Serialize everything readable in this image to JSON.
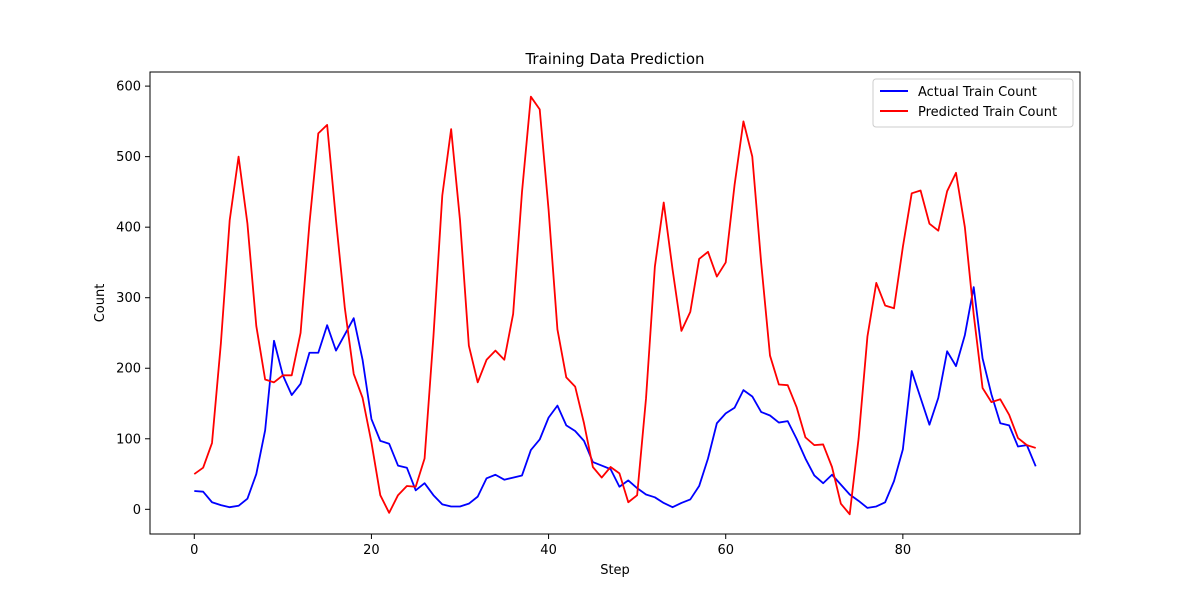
{
  "chart_data": {
    "type": "line",
    "title": "Training Data Prediction",
    "xlabel": "Step",
    "ylabel": "Count",
    "xlim": [
      -5,
      100
    ],
    "ylim": [
      -35,
      620
    ],
    "xticks": [
      0,
      20,
      40,
      60,
      80
    ],
    "yticks": [
      0,
      100,
      200,
      300,
      400,
      500,
      600
    ],
    "grid": false,
    "legend_position": "top-right",
    "series": [
      {
        "name": "Actual Train Count",
        "color": "#0000ff",
        "values": [
          26,
          25,
          10,
          6,
          3,
          5,
          15,
          50,
          112,
          239,
          190,
          162,
          178,
          222,
          222,
          261,
          225,
          248,
          271,
          212,
          128,
          97,
          93,
          62,
          59,
          27,
          37,
          20,
          7,
          4,
          4,
          8,
          18,
          44,
          49,
          42,
          45,
          48,
          84,
          99,
          130,
          147,
          119,
          111,
          97,
          67,
          62,
          57,
          32,
          41,
          30,
          21,
          17,
          9,
          3,
          9,
          14,
          33,
          72,
          122,
          136,
          144,
          169,
          160,
          138,
          133,
          123,
          125,
          100,
          72,
          48,
          37,
          49,
          35,
          21,
          12,
          2,
          4,
          10,
          40,
          85,
          196,
          158,
          120,
          158,
          224,
          203,
          247,
          315,
          214,
          163,
          122,
          119,
          89,
          91,
          61
        ]
      },
      {
        "name": "Predicted Train Count",
        "color": "#ff0000",
        "values": [
          50,
          59,
          94,
          235,
          410,
          500,
          405,
          260,
          184,
          180,
          190,
          190,
          250,
          405,
          533,
          545,
          410,
          285,
          192,
          158,
          95,
          20,
          -5,
          20,
          33,
          32,
          72,
          245,
          445,
          539,
          410,
          232,
          180,
          212,
          225,
          212,
          277,
          450,
          585,
          567,
          425,
          255,
          187,
          174,
          122,
          60,
          45,
          60,
          51,
          10,
          20,
          157,
          344,
          435,
          340,
          253,
          280,
          355,
          365,
          330,
          350,
          460,
          550,
          500,
          350,
          218,
          177,
          176,
          145,
          102,
          91,
          92,
          60,
          8,
          -7,
          100,
          245,
          321,
          289,
          285,
          372,
          448,
          452,
          405,
          395,
          451,
          477,
          400,
          276,
          172,
          152,
          156,
          134,
          101,
          91,
          87
        ]
      }
    ]
  }
}
